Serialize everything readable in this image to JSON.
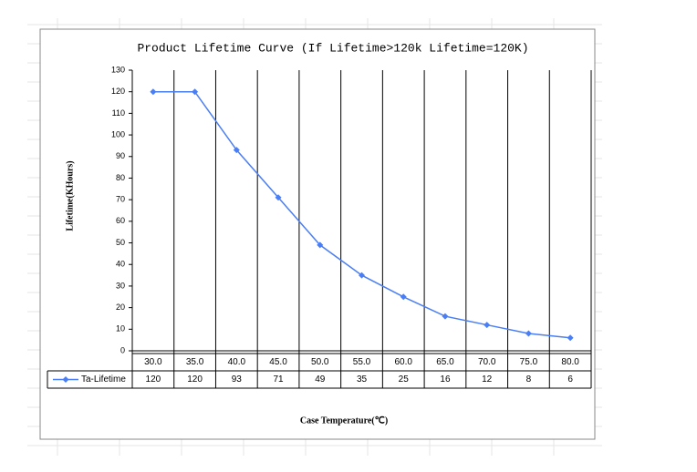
{
  "chart_data": {
    "type": "line",
    "title": "Product Lifetime Curve (If Lifetime>120k Lifetime=120K)",
    "y_label": "Lifetime(KHours)",
    "x_label": "Case Temperature(℃)",
    "categories": [
      "30.0",
      "35.0",
      "40.0",
      "45.0",
      "50.0",
      "55.0",
      "60.0",
      "65.0",
      "70.0",
      "75.0",
      "80.0"
    ],
    "series": [
      {
        "name": "Ta-Lifetime",
        "color": "#4a7ef5",
        "values": [
          120,
          120,
          93,
          71,
          49,
          35,
          25,
          16,
          12,
          8,
          6
        ]
      }
    ],
    "ylim": [
      0,
      130
    ],
    "yticks": [
      0,
      10,
      20,
      30,
      40,
      50,
      60,
      70,
      80,
      90,
      100,
      110,
      120,
      130
    ],
    "grid": true
  }
}
